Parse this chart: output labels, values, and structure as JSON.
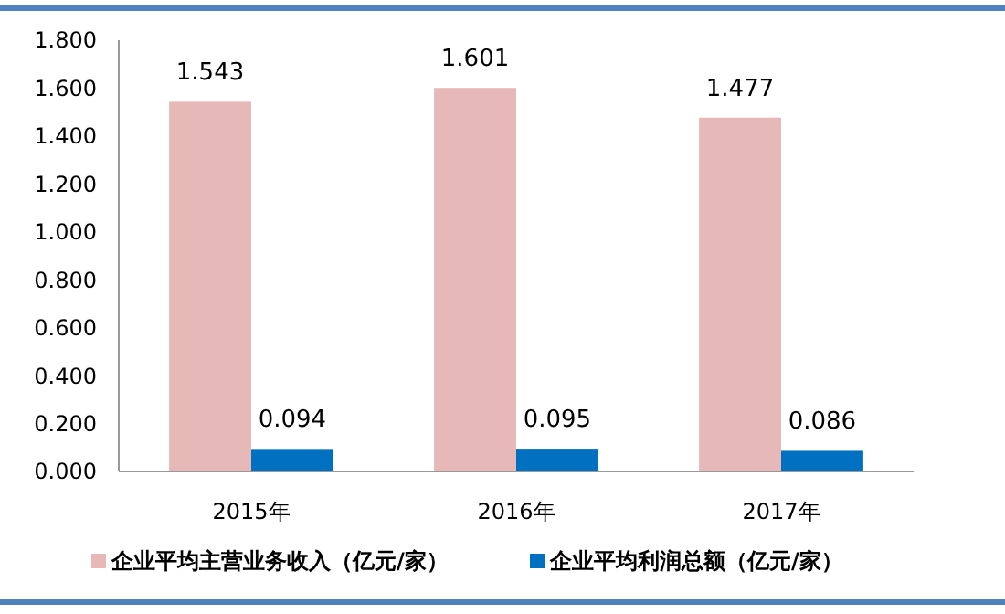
{
  "chart_data": {
    "type": "bar",
    "categories": [
      "2015年",
      "2016年",
      "2017年"
    ],
    "series": [
      {
        "name": "企业平均主营业务收入（亿元/家）",
        "color": "#e6b9b8",
        "values": [
          1.543,
          1.601,
          1.477
        ]
      },
      {
        "name": "企业平均利润总额（亿元/家）",
        "color": "#0070c0",
        "values": [
          0.094,
          0.095,
          0.086
        ]
      }
    ],
    "ylim": [
      0,
      1.8
    ],
    "yticks": [
      {
        "value": 0,
        "label": "0.000"
      },
      {
        "value": 0.2,
        "label": "0.200"
      },
      {
        "value": 0.4,
        "label": "0.400"
      },
      {
        "value": 0.6,
        "label": "0.600"
      },
      {
        "value": 0.8,
        "label": "0.800"
      },
      {
        "value": 1,
        "label": "1.000"
      },
      {
        "value": 1.2,
        "label": "1.200"
      },
      {
        "value": 1.4,
        "label": "1.400"
      },
      {
        "value": 1.6,
        "label": "1.600"
      },
      {
        "value": 1.8,
        "label": "1.800"
      }
    ],
    "data_labels": true,
    "grid": false,
    "legend": "bottom"
  }
}
